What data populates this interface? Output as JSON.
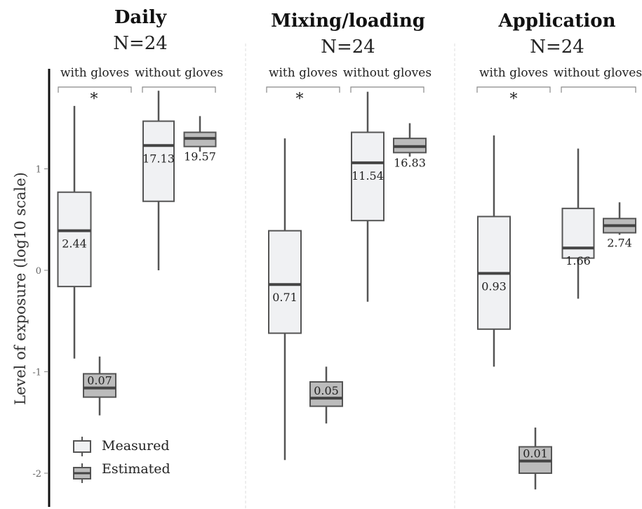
{
  "chart_data": {
    "type": "boxplot",
    "ylabel": "Level of exposure (log10 scale)",
    "y_ticks": [
      "1",
      "0",
      "-1",
      "-2"
    ],
    "ylim": [
      -2.3,
      1.85
    ],
    "group_labels": [
      "with gloves",
      "without gloves"
    ],
    "significance_marker": "*",
    "legend": [
      "Measured",
      "Estimated"
    ],
    "panels": [
      {
        "title": "Daily",
        "n_label": "N=24",
        "boxes": [
          {
            "group": "with gloves",
            "type": "Measured",
            "whisker_low": -0.87,
            "q1": -0.16,
            "median": 0.39,
            "q3": 0.77,
            "whisker_high": 1.62,
            "label": "2.44"
          },
          {
            "group": "with gloves",
            "type": "Estimated",
            "whisker_low": -1.43,
            "q1": -1.25,
            "median": -1.16,
            "q3": -1.02,
            "whisker_high": -0.85,
            "label": "0.07"
          },
          {
            "group": "without gloves",
            "type": "Measured",
            "whisker_low": 0.0,
            "q1": 0.68,
            "median": 1.23,
            "q3": 1.47,
            "whisker_high": 1.77,
            "label": "17.13"
          },
          {
            "group": "without gloves",
            "type": "Estimated",
            "whisker_low": 1.17,
            "q1": 1.22,
            "median": 1.3,
            "q3": 1.36,
            "whisker_high": 1.52,
            "label": "19.57"
          }
        ]
      },
      {
        "title": "Mixing/loading",
        "n_label": "N=24",
        "boxes": [
          {
            "group": "with gloves",
            "type": "Measured",
            "whisker_low": -1.87,
            "q1": -0.62,
            "median": -0.14,
            "q3": 0.39,
            "whisker_high": 1.3,
            "label": "0.71"
          },
          {
            "group": "with gloves",
            "type": "Estimated",
            "whisker_low": -1.51,
            "q1": -1.34,
            "median": -1.26,
            "q3": -1.1,
            "whisker_high": -0.95,
            "label": "0.05"
          },
          {
            "group": "without gloves",
            "type": "Measured",
            "whisker_low": -0.31,
            "q1": 0.49,
            "median": 1.06,
            "q3": 1.36,
            "whisker_high": 1.76,
            "label": "11.54"
          },
          {
            "group": "without gloves",
            "type": "Estimated",
            "whisker_low": 1.12,
            "q1": 1.16,
            "median": 1.22,
            "q3": 1.3,
            "whisker_high": 1.45,
            "label": "16.83"
          }
        ]
      },
      {
        "title": "Application",
        "n_label": "N=24",
        "boxes": [
          {
            "group": "with gloves",
            "type": "Measured",
            "whisker_low": -0.95,
            "q1": -0.58,
            "median": -0.03,
            "q3": 0.53,
            "whisker_high": 1.33,
            "label": "0.93"
          },
          {
            "group": "with gloves",
            "type": "Estimated",
            "whisker_low": -2.16,
            "q1": -2.0,
            "median": -1.88,
            "q3": -1.74,
            "whisker_high": -1.55,
            "label": "0.01"
          },
          {
            "group": "without gloves",
            "type": "Measured",
            "whisker_low": -0.28,
            "q1": 0.12,
            "median": 0.22,
            "q3": 0.61,
            "whisker_high": 1.2,
            "label": "1.66"
          },
          {
            "group": "without gloves",
            "type": "Estimated",
            "whisker_low": 0.35,
            "q1": 0.37,
            "median": 0.44,
            "q3": 0.51,
            "whisker_high": 0.67,
            "label": "2.74"
          }
        ]
      }
    ],
    "colors": {
      "measured_fill": "#f0f1f3",
      "estimated_fill": "#bcbcbc",
      "stroke": "#555555",
      "median": "#444444"
    }
  }
}
